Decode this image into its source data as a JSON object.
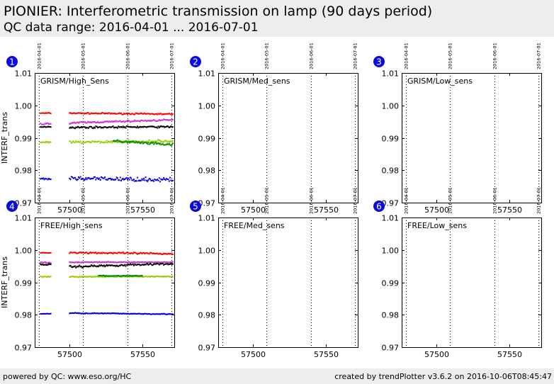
{
  "header": {
    "title": "PIONIER: Interferometric transmission on lamp (90 days period)",
    "subtitle": "QC data range: 2016-04-01 ... 2016-07-01"
  },
  "footer": {
    "left": "powered by QC: www.eso.org/HC",
    "right": "created by trendPlotter v3.6.2 on 2016-10-06T08:45:47"
  },
  "chart_data": [
    {
      "type": "scatter",
      "number": "1",
      "label": "GRISM/High_Sens",
      "ylabel": "INTERF_trans",
      "xlim": [
        57476,
        57572
      ],
      "ylim": [
        0.97,
        1.01
      ],
      "xticks": [
        57500,
        57550
      ],
      "yticks": [
        0.97,
        0.98,
        0.99,
        1.0,
        1.01
      ],
      "date_markers": [
        {
          "x": 57479,
          "label": "2016-04-01"
        },
        {
          "x": 57509,
          "label": "2016-05-01"
        },
        {
          "x": 57540,
          "label": "2016-06-01"
        },
        {
          "x": 57570,
          "label": "2016-07-01"
        }
      ],
      "series": [
        {
          "color": "#ff0000",
          "segments": [
            [
              57480,
              57487,
              0.9976,
              0.9976,
              0.0002
            ],
            [
              57500,
              57571,
              0.9976,
              0.9973,
              0.0003
            ]
          ]
        },
        {
          "color": "#cc33cc",
          "segments": [
            [
              57480,
              57487,
              0.9943,
              0.9943,
              0.0004
            ],
            [
              57500,
              57571,
              0.9946,
              0.9955,
              0.0004
            ]
          ]
        },
        {
          "color": "#000000",
          "segments": [
            [
              57480,
              57487,
              0.9934,
              0.9934,
              0.0002
            ],
            [
              57500,
              57571,
              0.9932,
              0.9934,
              0.0004
            ]
          ]
        },
        {
          "color": "#99cc00",
          "segments": [
            [
              57480,
              57487,
              0.9886,
              0.9887,
              0.0004
            ],
            [
              57500,
              57571,
              0.9886,
              0.989,
              0.0006
            ]
          ]
        },
        {
          "color": "#008800",
          "segments": [
            [
              57530,
              57571,
              0.989,
              0.9878,
              0.0006
            ]
          ]
        },
        {
          "color": "#0000dd",
          "segments": [
            [
              57480,
              57487,
              0.9773,
              0.9773,
              0.0005
            ],
            [
              57500,
              57571,
              0.9775,
              0.977,
              0.0009
            ]
          ]
        }
      ]
    },
    {
      "type": "scatter",
      "number": "2",
      "label": "GRISM/Med_sens",
      "ylabel": "",
      "xlim": [
        57476,
        57572
      ],
      "ylim": [
        0.97,
        1.01
      ],
      "xticks": [
        57500,
        57550
      ],
      "yticks": [
        0.97,
        0.98,
        0.99,
        1.0,
        1.01
      ],
      "date_markers": [
        {
          "x": 57479,
          "label": "2016-04-01"
        },
        {
          "x": 57509,
          "label": "2016-05-01"
        },
        {
          "x": 57540,
          "label": "2016-06-01"
        },
        {
          "x": 57570,
          "label": "2016-07-01"
        }
      ],
      "series": []
    },
    {
      "type": "scatter",
      "number": "3",
      "label": "GRISM/Low_sens",
      "ylabel": "",
      "xlim": [
        57476,
        57572
      ],
      "ylim": [
        0.97,
        1.01
      ],
      "xticks": [
        57500,
        57550
      ],
      "yticks": [
        0.97,
        0.98,
        0.99,
        1.0,
        1.01
      ],
      "date_markers": [
        {
          "x": 57479,
          "label": "2016-04-01"
        },
        {
          "x": 57509,
          "label": "2016-05-01"
        },
        {
          "x": 57540,
          "label": "2016-06-01"
        },
        {
          "x": 57570,
          "label": "2016-07-01"
        }
      ],
      "series": []
    },
    {
      "type": "scatter",
      "number": "4",
      "label": "FREE/High_sens",
      "ylabel": "INTERF_trans",
      "xlim": [
        57476,
        57572
      ],
      "ylim": [
        0.97,
        1.01
      ],
      "xticks": [
        57500,
        57550
      ],
      "yticks": [
        0.97,
        0.98,
        0.99,
        1.0,
        1.01
      ],
      "date_markers": [
        {
          "x": 57479,
          "label": "2016-04-01"
        },
        {
          "x": 57509,
          "label": "2016-05-01"
        },
        {
          "x": 57540,
          "label": "2016-06-01"
        },
        {
          "x": 57570,
          "label": "2016-07-01"
        }
      ],
      "series": [
        {
          "color": "#ff0000",
          "segments": [
            [
              57480,
              57487,
              0.9991,
              0.9991,
              0.0001
            ],
            [
              57500,
              57571,
              0.9992,
              0.9988,
              0.0004
            ]
          ]
        },
        {
          "color": "#cc33cc",
          "segments": [
            [
              57480,
              57487,
              0.9961,
              0.9961,
              0.0003
            ],
            [
              57500,
              57571,
              0.9962,
              0.9962,
              0.0002
            ]
          ]
        },
        {
          "color": "#000000",
          "segments": [
            [
              57480,
              57487,
              0.9955,
              0.9955,
              0.0003
            ],
            [
              57500,
              57571,
              0.9948,
              0.9958,
              0.0005
            ]
          ]
        },
        {
          "color": "#99cc00",
          "segments": [
            [
              57480,
              57487,
              0.9917,
              0.9917,
              0.0002
            ],
            [
              57500,
              57571,
              0.9917,
              0.9918,
              0.0002
            ]
          ]
        },
        {
          "color": "#008800",
          "segments": [
            [
              57520,
              57550,
              0.992,
              0.992,
              0.0002
            ]
          ]
        },
        {
          "color": "#0000dd",
          "segments": [
            [
              57480,
              57487,
              0.9803,
              0.9803,
              0.0001
            ],
            [
              57500,
              57571,
              0.9805,
              0.9802,
              0.0002
            ]
          ]
        }
      ]
    },
    {
      "type": "scatter",
      "number": "5",
      "label": "FREE/Med_sens",
      "ylabel": "",
      "xlim": [
        57476,
        57572
      ],
      "ylim": [
        0.97,
        1.01
      ],
      "xticks": [
        57500,
        57550
      ],
      "yticks": [
        0.97,
        0.98,
        0.99,
        1.0,
        1.01
      ],
      "date_markers": [
        {
          "x": 57479,
          "label": "2016-04-01"
        },
        {
          "x": 57509,
          "label": "2016-05-01"
        },
        {
          "x": 57540,
          "label": "2016-06-01"
        },
        {
          "x": 57570,
          "label": "2016-07-01"
        }
      ],
      "series": []
    },
    {
      "type": "scatter",
      "number": "6",
      "label": "FREE/Low_sens",
      "ylabel": "",
      "xlim": [
        57476,
        57572
      ],
      "ylim": [
        0.97,
        1.01
      ],
      "xticks": [
        57500,
        57550
      ],
      "yticks": [
        0.97,
        0.98,
        0.99,
        1.0,
        1.01
      ],
      "date_markers": [
        {
          "x": 57479,
          "label": "2016-04-01"
        },
        {
          "x": 57509,
          "label": "2016-05-01"
        },
        {
          "x": 57540,
          "label": "2016-06-01"
        },
        {
          "x": 57570,
          "label": "2016-07-01"
        }
      ],
      "series": []
    }
  ]
}
